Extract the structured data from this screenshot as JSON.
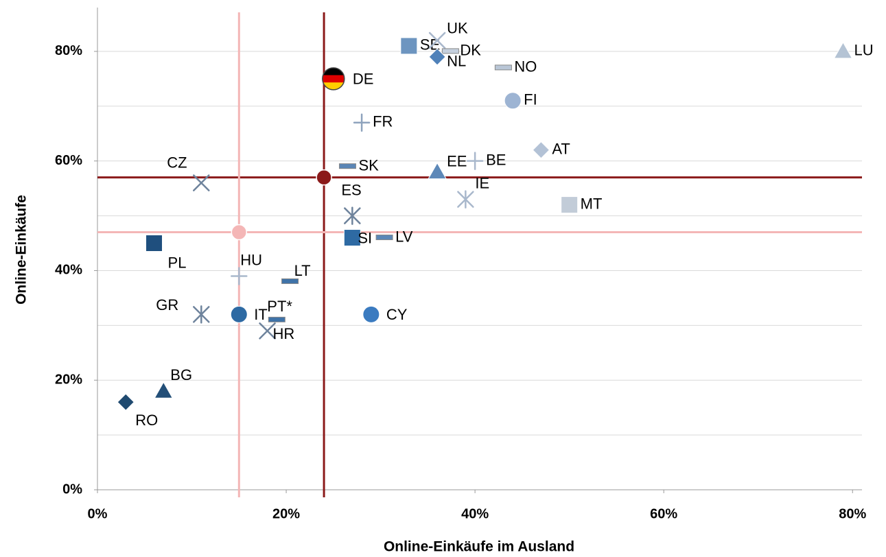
{
  "chart_data": {
    "type": "scatter",
    "xlabel": "Online-Einkäufe im Ausland",
    "ylabel": "Online-Einkäufe",
    "xlim": [
      0,
      81
    ],
    "ylim": [
      0,
      88
    ],
    "xticks": [
      {
        "value": 0,
        "label": "0%"
      },
      {
        "value": 20,
        "label": "20%"
      },
      {
        "value": 40,
        "label": "40%"
      },
      {
        "value": 60,
        "label": "60%"
      },
      {
        "value": 80,
        "label": "80%"
      }
    ],
    "yticks": [
      {
        "value": 0,
        "label": "0%"
      },
      {
        "value": 20,
        "label": "20%"
      },
      {
        "value": 40,
        "label": "40%"
      },
      {
        "value": 60,
        "label": "60%"
      },
      {
        "value": 80,
        "label": "80%"
      }
    ],
    "minor_yticks": [
      10,
      30,
      50,
      70
    ],
    "grid": true,
    "points": [
      {
        "label": "LU",
        "x": 79,
        "y": 80,
        "marker": "triangle",
        "color": "#b4c3d4"
      },
      {
        "label": "SE",
        "x": 33,
        "y": 81,
        "marker": "square",
        "color": "#6d95c0"
      },
      {
        "label": "UK",
        "x": 36,
        "y": 82,
        "marker": "x",
        "color": "#a9b8cc"
      },
      {
        "label": "DK",
        "x": 37.4,
        "y": 80,
        "marker": "dash",
        "color": "#c5d0de"
      },
      {
        "label": "NL",
        "x": 36,
        "y": 79,
        "marker": "diamond",
        "color": "#4f81b9"
      },
      {
        "label": "NO",
        "x": 43,
        "y": 77,
        "marker": "dash",
        "color": "#b9c6d6"
      },
      {
        "label": "DE",
        "x": 25,
        "y": 75,
        "marker": "flag",
        "color": "#000000"
      },
      {
        "label": "FI",
        "x": 44,
        "y": 71,
        "marker": "circle",
        "color": "#9db4d3"
      },
      {
        "label": "FR",
        "x": 28,
        "y": 67,
        "marker": "plus",
        "color": "#8ea3bd"
      },
      {
        "label": "AT",
        "x": 47,
        "y": 62,
        "marker": "diamond",
        "color": "#b3c2d6"
      },
      {
        "label": "BE",
        "x": 40,
        "y": 60,
        "marker": "plus",
        "color": "#a9b8cc"
      },
      {
        "label": "SK",
        "x": 26.5,
        "y": 59,
        "marker": "dash",
        "color": "#5b86b6"
      },
      {
        "label": "EE",
        "x": 36,
        "y": 58,
        "marker": "triangle",
        "color": "#5d88b8"
      },
      {
        "label": "CZ",
        "x": 11,
        "y": 56,
        "marker": "x",
        "color": "#6e839c"
      },
      {
        "label": "ES",
        "x": 27,
        "y": 50,
        "marker": "asterisk",
        "color": "#6e839c"
      },
      {
        "label": "IE",
        "x": 39,
        "y": 53,
        "marker": "asterisk",
        "color": "#a9b8cc"
      },
      {
        "label": "MT",
        "x": 50,
        "y": 52,
        "marker": "square",
        "color": "#c2ccd8"
      },
      {
        "label": "SI",
        "x": 27,
        "y": 46,
        "marker": "square",
        "color": "#2e6aa3"
      },
      {
        "label": "LV",
        "x": 30.4,
        "y": 46,
        "marker": "dash",
        "color": "#5b86b6"
      },
      {
        "label": "PL",
        "x": 6,
        "y": 45,
        "marker": "square",
        "color": "#1f4f7e"
      },
      {
        "label": "HU",
        "x": 15,
        "y": 39,
        "marker": "plus",
        "color": "#a9b8cc"
      },
      {
        "label": "LT",
        "x": 20.4,
        "y": 38,
        "marker": "dash",
        "color": "#3f73a8"
      },
      {
        "label": "GR",
        "x": 11,
        "y": 32,
        "marker": "asterisk",
        "color": "#6e839c"
      },
      {
        "label": "IT",
        "x": 15,
        "y": 32,
        "marker": "circle",
        "color": "#2e6aa3"
      },
      {
        "label": "PT*",
        "x": 19,
        "y": 31,
        "marker": "dash",
        "color": "#3f73a8"
      },
      {
        "label": "HR",
        "x": 18,
        "y": 29,
        "marker": "x",
        "color": "#6e839c"
      },
      {
        "label": "CY",
        "x": 29,
        "y": 32,
        "marker": "circle",
        "color": "#3b7bc0"
      },
      {
        "label": "BG",
        "x": 7,
        "y": 18,
        "marker": "triangle",
        "color": "#234f78"
      },
      {
        "label": "RO",
        "x": 3,
        "y": 16,
        "marker": "diamond",
        "color": "#1f4a70"
      }
    ],
    "reference_points": [
      {
        "x": 24,
        "y": 57,
        "color": "#8b1a1a"
      },
      {
        "x": 15,
        "y": 47,
        "color": "#f4b6b6"
      }
    ]
  }
}
